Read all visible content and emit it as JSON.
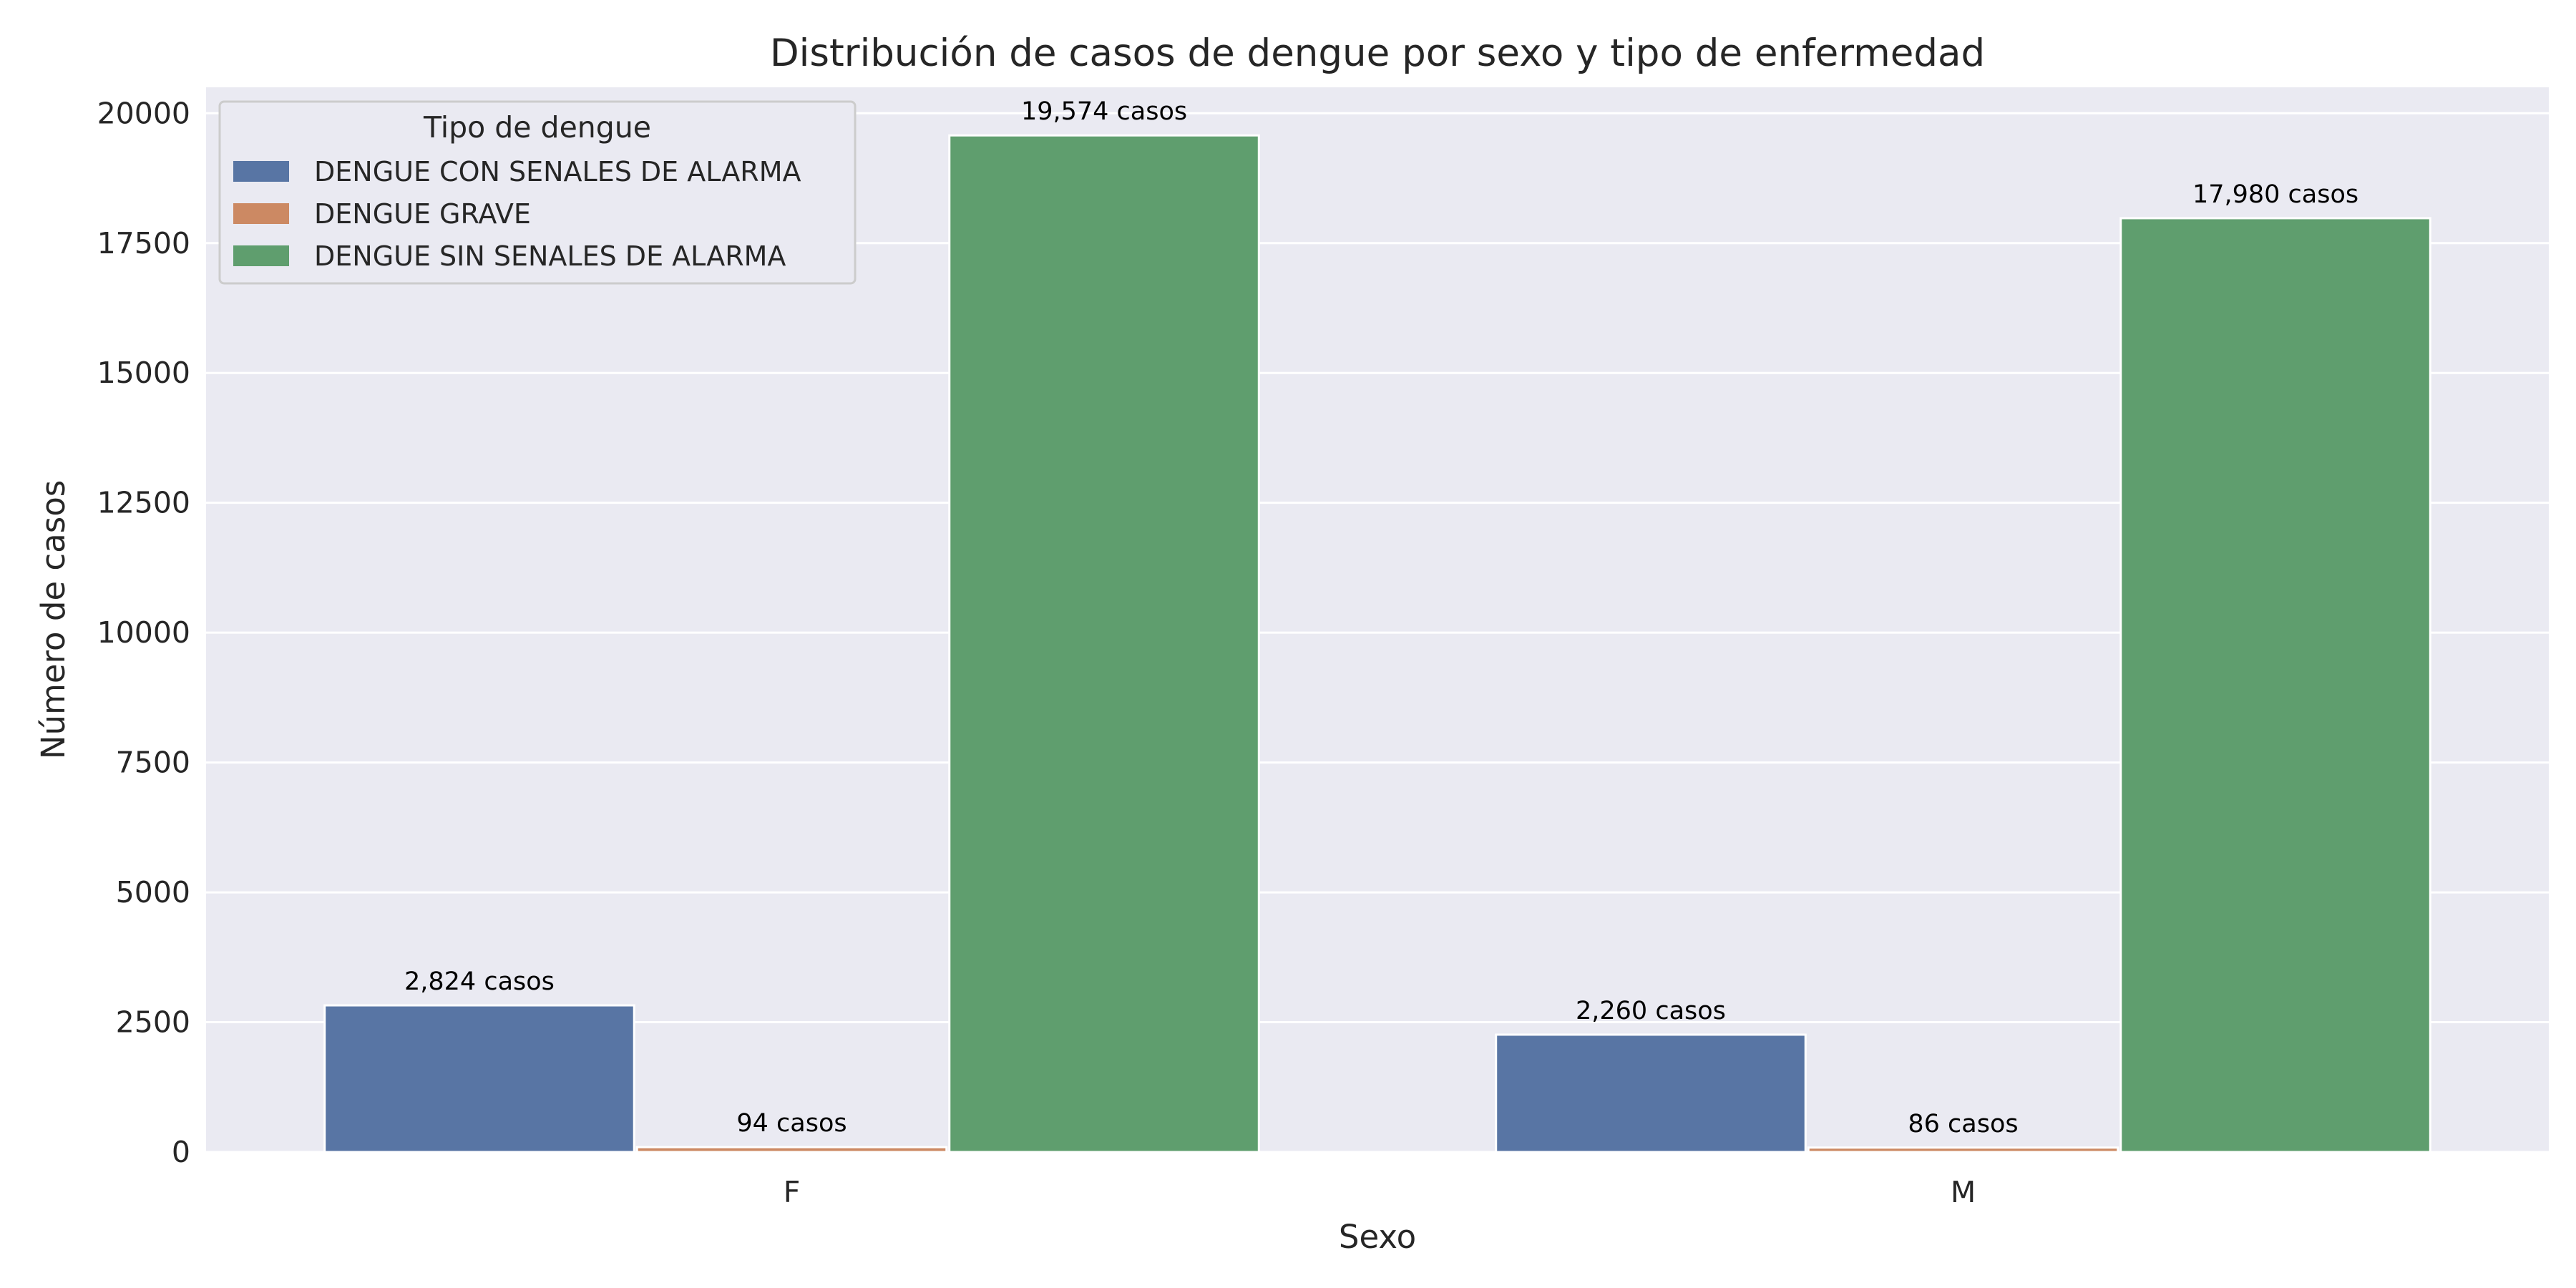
{
  "chart_data": {
    "type": "bar",
    "title": "Distribución de casos de dengue por sexo y tipo de enfermedad",
    "xlabel": "Sexo",
    "ylabel": "Número de casos",
    "categories": [
      "F",
      "M"
    ],
    "series": [
      {
        "name": "DENGUE CON SENALES DE ALARMA",
        "values": [
          2824,
          2260
        ],
        "labels": [
          "2,824 casos",
          "2,260 casos"
        ],
        "color": "#5875a4"
      },
      {
        "name": "DENGUE GRAVE",
        "values": [
          94,
          86
        ],
        "labels": [
          "94 casos",
          "86 casos"
        ],
        "color": "#cc8963"
      },
      {
        "name": "DENGUE SIN SENALES DE ALARMA",
        "values": [
          19574,
          17980
        ],
        "labels": [
          "19,574 casos",
          "17,980 casos"
        ],
        "color": "#5f9e6e"
      }
    ],
    "ylim": [
      0,
      20500
    ],
    "yticks": [
      0,
      2500,
      5000,
      7500,
      10000,
      12500,
      15000,
      17500,
      20000
    ],
    "ytick_labels": [
      "0",
      "2500",
      "5000",
      "7500",
      "10000",
      "12500",
      "15000",
      "17500",
      "20000"
    ],
    "legend": {
      "title": "Tipo de dengue",
      "position": "top-left"
    },
    "grid": true,
    "background_color": "#eaeaf2",
    "grid_color": "#ffffff"
  }
}
